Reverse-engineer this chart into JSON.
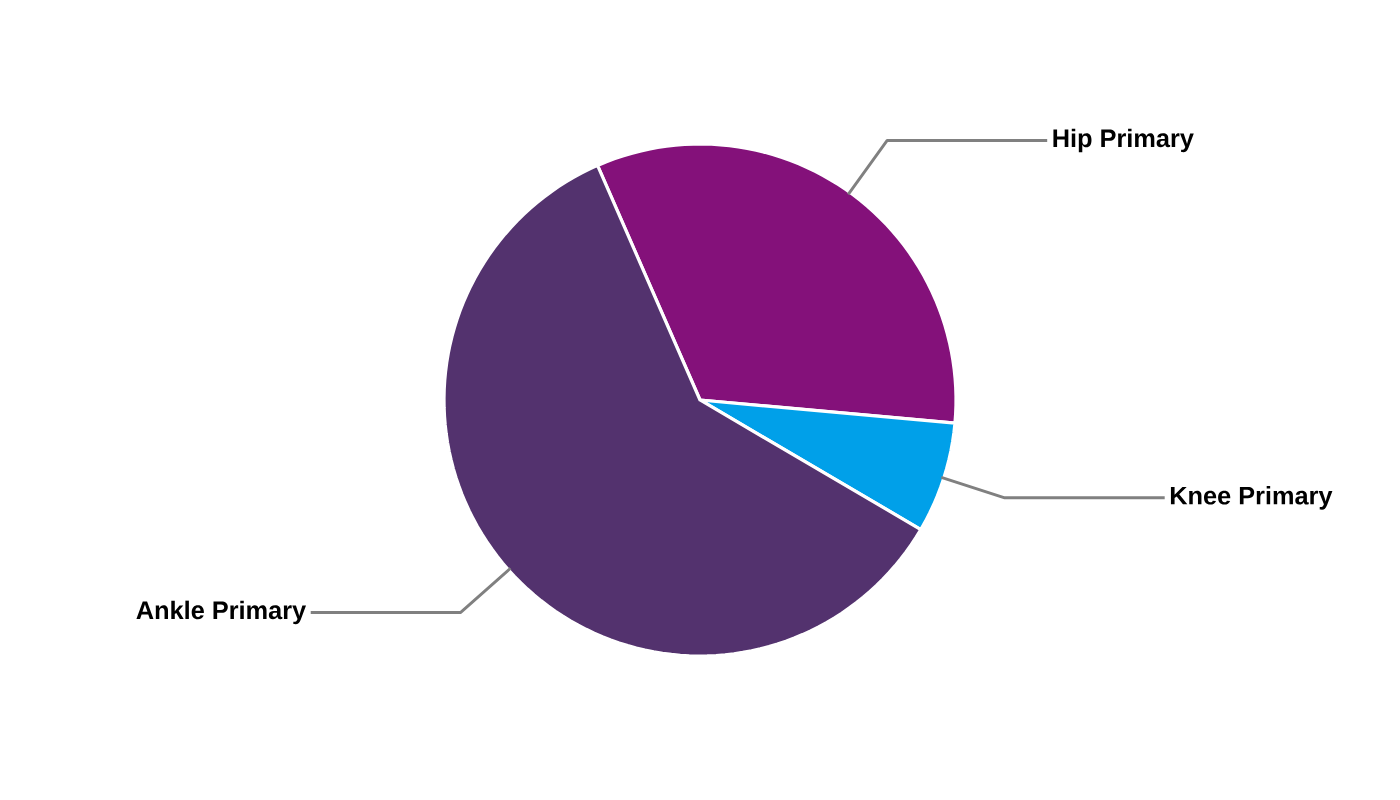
{
  "chart_data": {
    "type": "pie",
    "categories": [
      "Hip Primary",
      "Knee Primary",
      "Ankle Primary"
    ],
    "values": [
      33,
      7,
      60
    ],
    "colors": [
      "#84117a",
      "#00a0e9",
      "#53326e"
    ]
  }
}
